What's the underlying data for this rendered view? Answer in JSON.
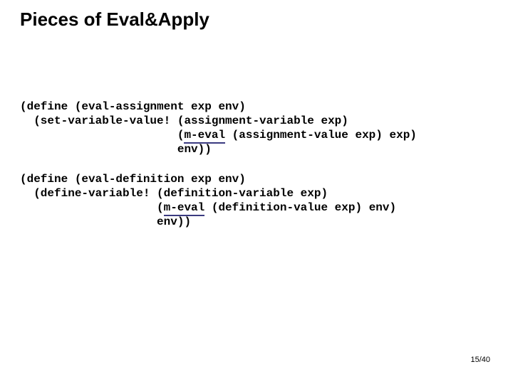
{
  "slide": {
    "title": "Pieces of Eval&Apply",
    "page_number": "15/40",
    "background_color": "#ffffff",
    "text_color": "#000000",
    "underline_color": "#3a3a80",
    "title_fontsize": 26,
    "code_fontsize": 16,
    "code_font": "Courier New",
    "code_font_weight": "bold",
    "title_font": "Arial",
    "title_font_weight": "bold"
  },
  "code1": {
    "l1": "(define (eval-assignment exp env)",
    "l2a": "  (set-variable-value! (assignment-variable exp)",
    "l3_indent": "                       (",
    "l3_hl": "m-eval",
    "l3_rest": " (assignment-value exp) exp)",
    "l4": "                       env))"
  },
  "code2": {
    "l1": "(define (eval-definition exp env)",
    "l2": "  (define-variable! (definition-variable exp)",
    "l3_indent": "                    (",
    "l3_hl": "m-eval",
    "l3_rest": " (definition-value exp) env)",
    "l4": "                    env))"
  }
}
